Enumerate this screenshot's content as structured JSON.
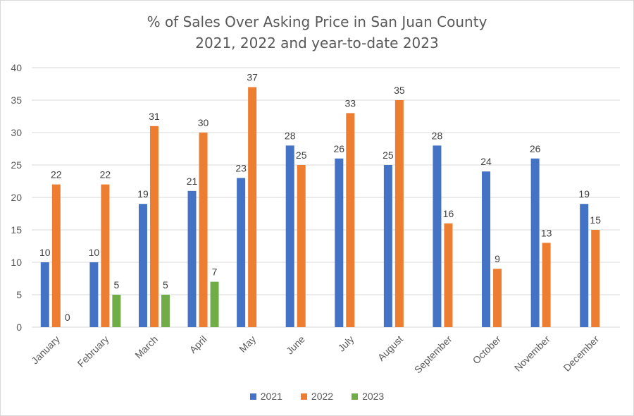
{
  "title": {
    "line1": "% of Sales Over Asking Price in San Juan County",
    "line2": "2021, 2022 and year-to-date 2023"
  },
  "chart_data": {
    "type": "bar",
    "title": "% of Sales Over Asking Price in San Juan County 2021, 2022 and year-to-date 2023",
    "xlabel": "",
    "ylabel": "",
    "ylim": [
      0,
      40
    ],
    "yticks": [
      0,
      5,
      10,
      15,
      20,
      25,
      30,
      35,
      40
    ],
    "grid": true,
    "legend_position": "bottom",
    "categories": [
      "January",
      "February",
      "March",
      "April",
      "May",
      "June",
      "July",
      "August",
      "September",
      "October",
      "November",
      "December"
    ],
    "series": [
      {
        "name": "2021",
        "color": "#4472c4",
        "values": [
          10,
          10,
          19,
          21,
          23,
          28,
          26,
          25,
          28,
          24,
          26,
          19
        ]
      },
      {
        "name": "2022",
        "color": "#ed7d31",
        "values": [
          22,
          22,
          31,
          30,
          37,
          25,
          33,
          35,
          16,
          9,
          13,
          15
        ]
      },
      {
        "name": "2023",
        "color": "#70ad47",
        "values": [
          0,
          5,
          5,
          7,
          null,
          null,
          null,
          null,
          null,
          null,
          null,
          null
        ]
      }
    ]
  }
}
